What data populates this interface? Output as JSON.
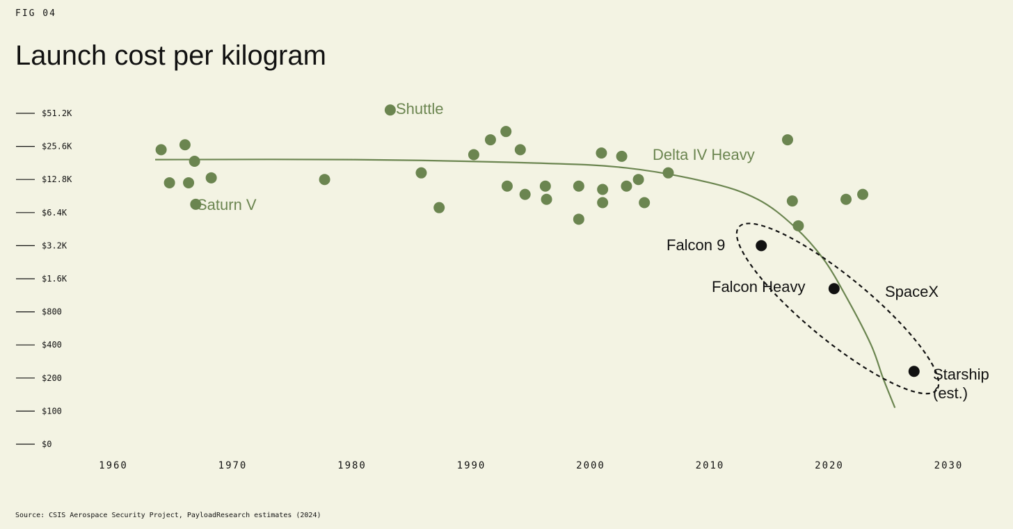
{
  "figure_label": "FIG 04",
  "source": "Source: CSIS Aerospace Security Project, PayloadResearch estimates (2024)",
  "colors": {
    "background": "#f3f3e3",
    "green": "#6b8550",
    "black": "#111111"
  },
  "chart_data": {
    "type": "scatter",
    "title": "Launch cost per kilogram",
    "xlabel": "",
    "ylabel": "",
    "xlim": [
      1957,
      2033
    ],
    "log_scale_y": true,
    "x_ticks": [
      1960,
      1970,
      1980,
      1990,
      2000,
      2010,
      2020,
      2030
    ],
    "y_ticks": [
      "$51.2K",
      "$25.6K",
      "$12.8K",
      "$6.4K",
      "$3.2K",
      "$1.6K",
      "$800",
      "$400",
      "$200",
      "$100",
      "$0"
    ],
    "grid": false,
    "series": [
      {
        "values": [
          {
            "x": 1964,
            "tick": 1.1
          },
          {
            "x": 1964.7,
            "tick": 2.1
          },
          {
            "x": 1966,
            "tick": 0.95
          },
          {
            "x": 1966.3,
            "tick": 2.1
          },
          {
            "x": 1966.8,
            "tick": 1.45
          },
          {
            "x": 1966.9,
            "tick": 2.75
          },
          {
            "x": 1968.2,
            "tick": 1.95
          },
          {
            "x": 1977.7,
            "tick": 2.0
          },
          {
            "x": 1983.2,
            "tick": -0.1
          },
          {
            "x": 1985.8,
            "tick": 1.8
          },
          {
            "x": 1987.3,
            "tick": 2.85
          },
          {
            "x": 1990.2,
            "tick": 1.25
          },
          {
            "x": 1991.6,
            "tick": 0.8
          },
          {
            "x": 1992.9,
            "tick": 0.55
          },
          {
            "x": 1993,
            "tick": 2.2
          },
          {
            "x": 1994.1,
            "tick": 1.1
          },
          {
            "x": 1994.5,
            "tick": 2.45
          },
          {
            "x": 1996.2,
            "tick": 2.2
          },
          {
            "x": 1996.3,
            "tick": 2.6
          },
          {
            "x": 1999,
            "tick": 2.2
          },
          {
            "x": 1999,
            "tick": 3.2
          },
          {
            "x": 2000.9,
            "tick": 1.2
          },
          {
            "x": 2001,
            "tick": 2.3
          },
          {
            "x": 2001,
            "tick": 2.7
          },
          {
            "x": 2002.6,
            "tick": 1.3
          },
          {
            "x": 2003,
            "tick": 2.2
          },
          {
            "x": 2004,
            "tick": 2.0
          },
          {
            "x": 2004.5,
            "tick": 2.7
          },
          {
            "x": 2006.5,
            "tick": 1.8
          },
          {
            "x": 2016.5,
            "tick": 0.8
          },
          {
            "x": 2016.9,
            "tick": 2.65
          },
          {
            "x": 2017.4,
            "tick": 3.4
          },
          {
            "x": 2021.4,
            "tick": 2.6
          },
          {
            "x": 2022.8,
            "tick": 2.45
          }
        ]
      },
      {
        "name": "SpaceX",
        "values": [
          {
            "x": 2014.3,
            "tick": 4.0
          },
          {
            "x": 2020.4,
            "tick": 5.3
          },
          {
            "x": 2027.1,
            "tick": 7.8
          }
        ]
      }
    ],
    "labels": {
      "saturn": "Saturn V",
      "shuttle": "Shuttle",
      "delta": "Delta IV Heavy",
      "falcon9": "Falcon 9",
      "falconheavy": "Falcon Heavy",
      "spacex": "SpaceX",
      "starship_1": "Starship",
      "starship_2": "(est.)"
    },
    "trend_line": [
      {
        "x": 1963.5,
        "tick": 1.4
      },
      {
        "x": 1980,
        "tick": 1.4
      },
      {
        "x": 1995,
        "tick": 1.5
      },
      {
        "x": 2003,
        "tick": 1.65
      },
      {
        "x": 2010,
        "tick": 2.1
      },
      {
        "x": 2014,
        "tick": 2.6
      },
      {
        "x": 2017,
        "tick": 3.4
      },
      {
        "x": 2019.5,
        "tick": 4.4
      },
      {
        "x": 2021.5,
        "tick": 5.6
      },
      {
        "x": 2023.5,
        "tick": 7.0
      },
      {
        "x": 2024.5,
        "tick": 8.0
      },
      {
        "x": 2025.5,
        "tick": 8.9
      }
    ]
  }
}
